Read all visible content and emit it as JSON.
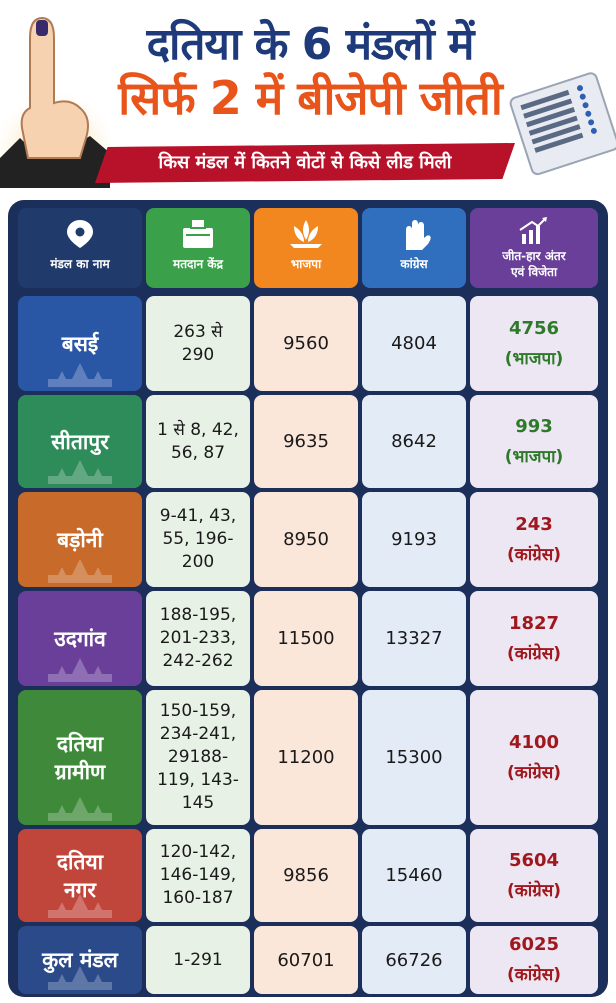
{
  "header": {
    "title_line1": "दतिया के 6 मंडलों में",
    "title_line2": "सिर्फ 2 में बीजेपी जीती",
    "subtitle": "किस मंडल में कितने वोटों से किसे लीड मिली"
  },
  "columns": {
    "mandal": "मंडल का नाम",
    "booth": "मतदान केंद्र",
    "bjp": "भाजपा",
    "inc": "कांग्रेस",
    "result_line1": "जीत-हार अंतर",
    "result_line2": "एवं विजेता"
  },
  "rows": [
    {
      "name_line1": "बसई",
      "name_line2": "",
      "booth_lines": [
        "263 से",
        "290"
      ],
      "bjp": "9560",
      "inc": "4804",
      "margin": "4756",
      "winner": "(भाजपा)"
    },
    {
      "name_line1": "सीतापुर",
      "name_line2": "",
      "booth_lines": [
        "1 से 8, 42,",
        "56, 87"
      ],
      "bjp": "9635",
      "inc": "8642",
      "margin": "993",
      "winner": "(भाजपा)"
    },
    {
      "name_line1": "बड़ोनी",
      "name_line2": "",
      "booth_lines": [
        "9-41, 43,",
        "55, 196-",
        "200"
      ],
      "bjp": "8950",
      "inc": "9193",
      "margin": "243",
      "winner": "(कांग्रेस)"
    },
    {
      "name_line1": "उदगांव",
      "name_line2": "",
      "booth_lines": [
        "188-195,",
        "201-233,",
        "242-262"
      ],
      "bjp": "11500",
      "inc": "13327",
      "margin": "1827",
      "winner": "(कांग्रेस)"
    },
    {
      "name_line1": "दतिया",
      "name_line2": "ग्रामीण",
      "booth_lines": [
        "150-159,",
        "234-241,",
        "29188-",
        "119, 143-",
        "145"
      ],
      "bjp": "11200",
      "inc": "15300",
      "margin": "4100",
      "winner": "(कांग्रेस)"
    },
    {
      "name_line1": "दतिया",
      "name_line2": "नगर",
      "booth_lines": [
        "120-142,",
        "146-149,",
        "160-187"
      ],
      "bjp": "9856",
      "inc": "15460",
      "margin": "5604",
      "winner": "(कांग्रेस)"
    },
    {
      "name_line1": "कुल मंडल",
      "name_line2": "",
      "booth_lines": [
        "1-291"
      ],
      "bjp": "60701",
      "inc": "66726",
      "margin": "6025",
      "winner": "(कांग्रेस)"
    }
  ],
  "colors": {
    "title_blue": "#1e3a7a",
    "title_orange": "#e8541a",
    "band_red": "#b8122a",
    "hdr_name": "#1f3a6b",
    "hdr_booth": "#3aa04a",
    "hdr_bjp": "#f2861f",
    "hdr_inc": "#2f6fbd",
    "hdr_result": "#6a3f9a",
    "win_green": "#2f7a2a",
    "win_red": "#a0181e"
  }
}
